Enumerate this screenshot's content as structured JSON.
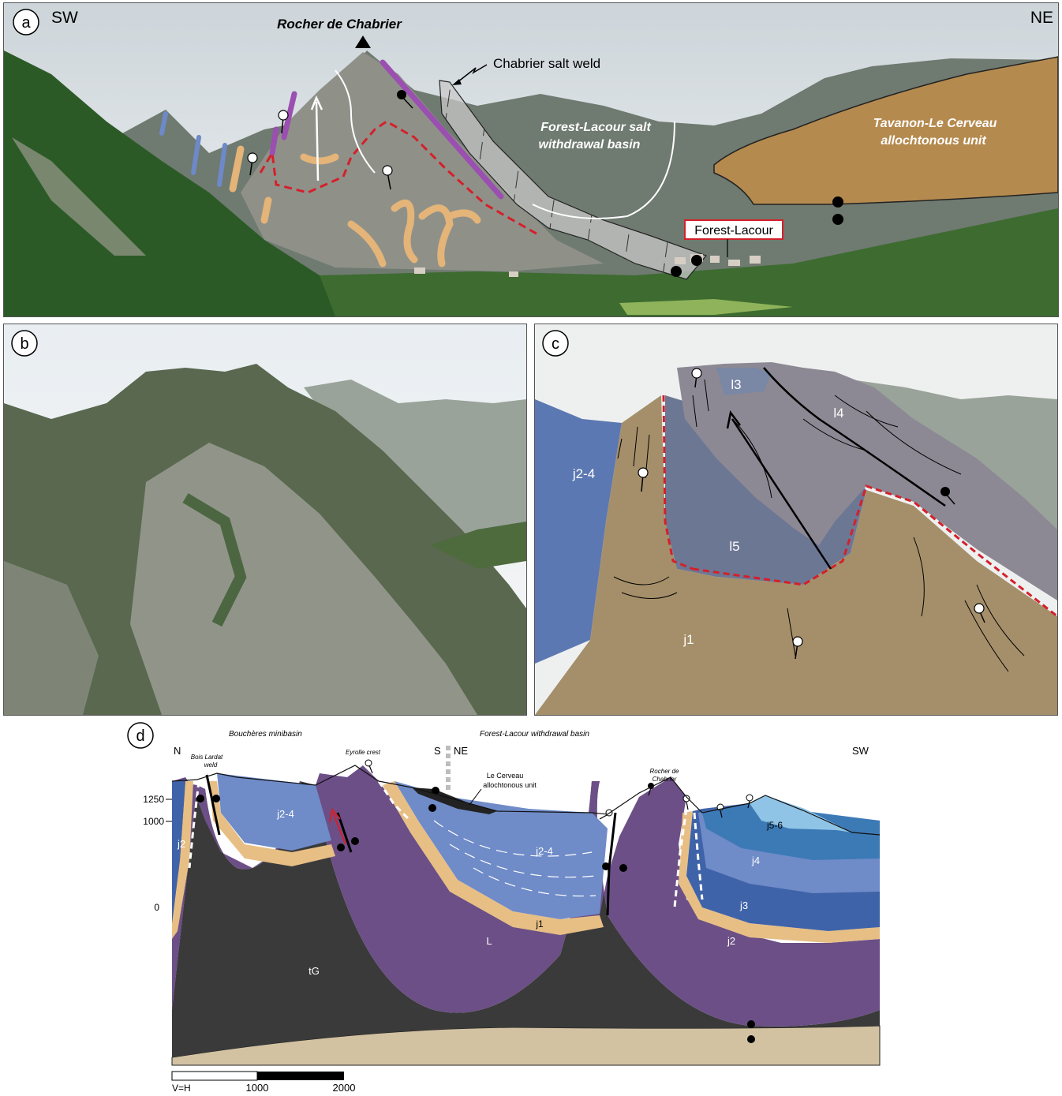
{
  "colors": {
    "sky": "#dfe6ea",
    "vegetation": "#2f5a2a",
    "rock": "#8d9088",
    "salt_weld_fill": "#c8c8c8",
    "allochthon": "#b58a4f",
    "weld_red": "#d4202a",
    "tG": "#3a3a3a",
    "L": "#6b4f86",
    "j1": "#e7bf85",
    "j2": "#3f63a8",
    "j3": "#6f8bc8",
    "j4": "#3c7ab6",
    "j5_6": "#8fc4e6",
    "j2_4": "#6f8bc8",
    "basement": "#d2c2a2"
  },
  "panel_a": {
    "letter": "a",
    "dir_left": "SW",
    "dir_right": "NE",
    "peak_label": "Rocher de Chabrier",
    "weld_label": "Chabrier salt weld",
    "basin_label_1": "Forest-Lacour salt",
    "basin_label_2": "withdrawal basin",
    "allochthon_label_1": "Tavanon-Le Cerveau",
    "allochthon_label_2": "allochtonous unit",
    "village_label": "Forest-Lacour"
  },
  "panel_b": {
    "letter": "b"
  },
  "panel_c": {
    "letter": "c",
    "units": {
      "l3": "l3",
      "l4": "l4",
      "l5": "l5",
      "j2_4": "j2-4",
      "j1": "j1"
    }
  },
  "panel_d": {
    "letter": "d",
    "minibasin_label": "Bouchères minibasin",
    "withdrawal_label": "Forest-Lacour withdrawal basin",
    "dir_n": "N",
    "dir_s": "S",
    "dir_ne": "NE",
    "dir_sw": "SW",
    "bois_lardat_1": "Bois Lardat",
    "bois_lardat_2": "weld",
    "eyrolle": "Eyrolle crest",
    "cerveau_1": "Le Cerveau",
    "cerveau_2": "allochtonous unit",
    "rocher_1": "Rocher de",
    "rocher_2": "Chabrier",
    "elev": [
      "1250",
      "1000",
      "0"
    ],
    "units": {
      "j2_left": "j2",
      "j2_4_left": "j2-4",
      "j2_4_center": "j2-4",
      "j1": "j1",
      "L": "L",
      "tG": "tG",
      "j5_6": "j5-6",
      "j4": "j4",
      "j3": "j3",
      "j2_right": "j2"
    },
    "scale_note": "V=H",
    "scale_ticks": [
      "1000",
      "2000"
    ]
  }
}
